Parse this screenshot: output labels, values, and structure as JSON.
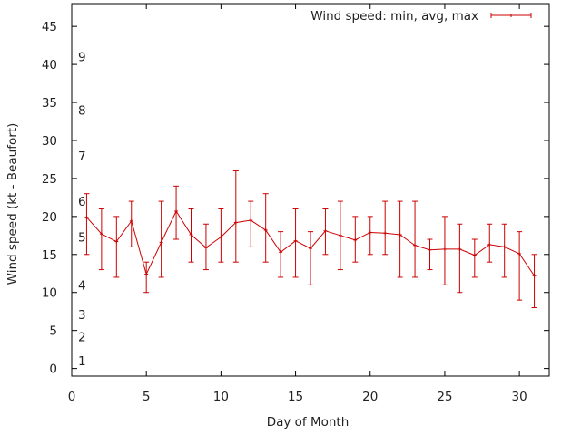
{
  "chart_data": {
    "type": "line",
    "xlabel": "Day of Month",
    "ylabel": "Wind speed (kt - Beaufort)",
    "xlim": [
      0,
      32
    ],
    "ylim": [
      -1,
      48
    ],
    "xticks": [
      0,
      5,
      10,
      15,
      20,
      25,
      30
    ],
    "yticks": [
      0,
      5,
      10,
      15,
      20,
      25,
      30,
      35,
      40,
      45
    ],
    "grid": false,
    "legend": {
      "placement": "top-right"
    },
    "beaufort_labels": [
      {
        "label": "1",
        "y": 1
      },
      {
        "label": "2",
        "y": 4.2
      },
      {
        "label": "3",
        "y": 7.1
      },
      {
        "label": "4",
        "y": 11
      },
      {
        "label": "5",
        "y": 17.3
      },
      {
        "label": "6",
        "y": 22
      },
      {
        "label": "7",
        "y": 28
      },
      {
        "label": "8",
        "y": 34
      },
      {
        "label": "9",
        "y": 41
      }
    ],
    "series": [
      {
        "name": "Wind speed: min, avg, max",
        "color": "#cc0000",
        "points": [
          {
            "x": 1,
            "avg": 19.9,
            "min": 15,
            "max": 23
          },
          {
            "x": 2,
            "avg": 17.7,
            "min": 13,
            "max": 21
          },
          {
            "x": 3,
            "avg": 16.7,
            "min": 12,
            "max": 20
          },
          {
            "x": 4,
            "avg": 19.4,
            "min": 16,
            "max": 22
          },
          {
            "x": 5,
            "avg": 12.4,
            "min": 10,
            "max": 14
          },
          {
            "x": 6,
            "avg": 16.6,
            "min": 12,
            "max": 22
          },
          {
            "x": 7,
            "avg": 20.7,
            "min": 17,
            "max": 24
          },
          {
            "x": 8,
            "avg": 17.6,
            "min": 14,
            "max": 21
          },
          {
            "x": 9,
            "avg": 15.9,
            "min": 13,
            "max": 19
          },
          {
            "x": 10,
            "avg": 17.3,
            "min": 14,
            "max": 21
          },
          {
            "x": 11,
            "avg": 19.2,
            "min": 14,
            "max": 26
          },
          {
            "x": 12,
            "avg": 19.5,
            "min": 16,
            "max": 22
          },
          {
            "x": 13,
            "avg": 18.2,
            "min": 14,
            "max": 23
          },
          {
            "x": 14,
            "avg": 15.3,
            "min": 12,
            "max": 18
          },
          {
            "x": 15,
            "avg": 16.8,
            "min": 12,
            "max": 21
          },
          {
            "x": 16,
            "avg": 15.8,
            "min": 11,
            "max": 18
          },
          {
            "x": 17,
            "avg": 18.1,
            "min": 15,
            "max": 21
          },
          {
            "x": 18,
            "avg": 17.5,
            "min": 13,
            "max": 22
          },
          {
            "x": 19,
            "avg": 16.9,
            "min": 14,
            "max": 20
          },
          {
            "x": 20,
            "avg": 17.9,
            "min": 15,
            "max": 20
          },
          {
            "x": 21,
            "avg": 17.8,
            "min": 15,
            "max": 22
          },
          {
            "x": 22,
            "avg": 17.6,
            "min": 12,
            "max": 22
          },
          {
            "x": 23,
            "avg": 16.2,
            "min": 12,
            "max": 22
          },
          {
            "x": 24,
            "avg": 15.6,
            "min": 13,
            "max": 17
          },
          {
            "x": 25,
            "avg": 15.7,
            "min": 11,
            "max": 20
          },
          {
            "x": 26,
            "avg": 15.7,
            "min": 10,
            "max": 19
          },
          {
            "x": 27,
            "avg": 14.9,
            "min": 12,
            "max": 17
          },
          {
            "x": 28,
            "avg": 16.3,
            "min": 14,
            "max": 19
          },
          {
            "x": 29,
            "avg": 16.0,
            "min": 12,
            "max": 19
          },
          {
            "x": 30,
            "avg": 15.1,
            "min": 9,
            "max": 18
          },
          {
            "x": 31,
            "avg": 12.2,
            "min": 8,
            "max": 15
          }
        ]
      }
    ]
  }
}
